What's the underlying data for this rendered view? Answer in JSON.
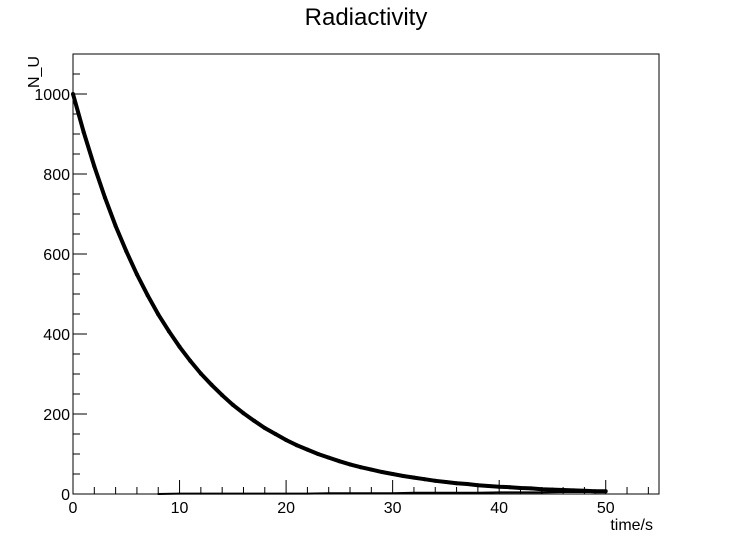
{
  "chart_data": {
    "type": "scatter",
    "title": "Radiactivity",
    "xlabel": "time/s",
    "ylabel": "N_U",
    "xlim": [
      0,
      55
    ],
    "ylim": [
      0,
      1100
    ],
    "xticks": [
      0,
      10,
      20,
      30,
      40,
      50
    ],
    "yticks": [
      0,
      200,
      400,
      600,
      800,
      1000
    ],
    "grid": false,
    "legend": "none",
    "series": [
      {
        "points": [
          [
            0,
            1000
          ],
          [
            1,
            905
          ],
          [
            2,
            819
          ],
          [
            3,
            741
          ],
          [
            4,
            670
          ],
          [
            5,
            607
          ],
          [
            6,
            549
          ],
          [
            7,
            497
          ],
          [
            8,
            449
          ],
          [
            9,
            407
          ],
          [
            10,
            368
          ],
          [
            11,
            333
          ],
          [
            12,
            301
          ],
          [
            13,
            273
          ],
          [
            14,
            247
          ],
          [
            15,
            223
          ],
          [
            16,
            202
          ],
          [
            17,
            183
          ],
          [
            18,
            165
          ],
          [
            19,
            150
          ],
          [
            20,
            135
          ],
          [
            21,
            122
          ],
          [
            22,
            111
          ],
          [
            23,
            100
          ],
          [
            24,
            91
          ],
          [
            25,
            82
          ],
          [
            26,
            74
          ],
          [
            27,
            67
          ],
          [
            28,
            61
          ],
          [
            29,
            55
          ],
          [
            30,
            50
          ],
          [
            31,
            45
          ],
          [
            32,
            41
          ],
          [
            33,
            37
          ],
          [
            34,
            33
          ],
          [
            35,
            30
          ],
          [
            36,
            27
          ],
          [
            37,
            25
          ],
          [
            38,
            22
          ],
          [
            39,
            20
          ],
          [
            40,
            18
          ],
          [
            41,
            17
          ],
          [
            42,
            15
          ],
          [
            43,
            14
          ],
          [
            44,
            12
          ],
          [
            45,
            11
          ],
          [
            46,
            10
          ],
          [
            47,
            9
          ],
          [
            48,
            8
          ],
          [
            49,
            7
          ],
          [
            50,
            7
          ]
        ],
        "color": "#000000"
      },
      {
        "points": [
          [
            8,
            0
          ],
          [
            10,
            1
          ],
          [
            12,
            1
          ],
          [
            14,
            1
          ],
          [
            16,
            1
          ],
          [
            18,
            1
          ],
          [
            20,
            1
          ],
          [
            22,
            1
          ],
          [
            24,
            2
          ],
          [
            26,
            2
          ],
          [
            28,
            2
          ],
          [
            30,
            2
          ],
          [
            32,
            3
          ],
          [
            34,
            3
          ],
          [
            36,
            3
          ],
          [
            38,
            3
          ],
          [
            40,
            4
          ],
          [
            42,
            4
          ],
          [
            44,
            4
          ],
          [
            46,
            5
          ],
          [
            48,
            5
          ],
          [
            50,
            5
          ]
        ],
        "color": "#000000"
      }
    ]
  }
}
